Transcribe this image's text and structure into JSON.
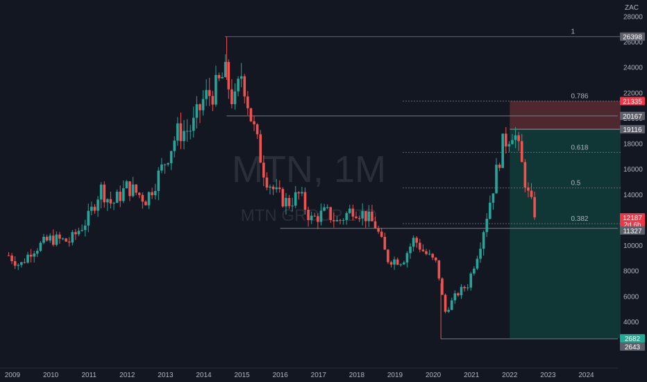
{
  "symbol_watermark": "MTN, 1M",
  "symbol_subtitle_watermark": "MTN GROUP LTD",
  "currency": "ZAC",
  "colors": {
    "background": "#131722",
    "up": "#26a69a",
    "down": "#ef5350",
    "grid_text": "#b2b5be",
    "fib_line": "#787b86",
    "stop_zone": "#5b2a31",
    "target_zone": "#113a37"
  },
  "chart_data": {
    "type": "candlestick",
    "interval": "1M",
    "y_ticks": [
      4000,
      6000,
      8000,
      10000,
      12000,
      14000,
      16000,
      18000,
      20000,
      22000,
      24000,
      26000,
      28000
    ],
    "x_ticks": [
      "2009",
      "2010",
      "2011",
      "2012",
      "2013",
      "2014",
      "2015",
      "2016",
      "2017",
      "2018",
      "2019",
      "2020",
      "2021",
      "2022",
      "2023",
      "2024"
    ],
    "ylim": [
      1000,
      29000
    ],
    "xlim": [
      2008.9,
      2024.9
    ],
    "fib_levels": [
      {
        "ratio": "1",
        "price": 26398
      },
      {
        "ratio": "0.786",
        "price": 21335
      },
      {
        "ratio": "0.618",
        "price": 17300
      },
      {
        "ratio": "0.5",
        "price": 14500
      },
      {
        "ratio": "0.382",
        "price": 11700
      }
    ],
    "horizontal_levels": [
      20167,
      11327
    ],
    "position": {
      "entry": 19116,
      "stop": 21335,
      "target": 2682,
      "start": 2022.0,
      "end": 2024.9
    },
    "price_labels": [
      {
        "text": "26398",
        "price": 26398,
        "style": "gray"
      },
      {
        "text": "21335",
        "price": 21335,
        "style": "red"
      },
      {
        "text": "20167",
        "price": 20167,
        "style": "gray"
      },
      {
        "text": "19116",
        "price": 19116,
        "style": "gray"
      },
      {
        "text": "12187",
        "price": 12187,
        "style": "red",
        "sub": "2d 6h"
      },
      {
        "text": "11327",
        "price": 11327,
        "style": "gray"
      },
      {
        "text": "2682",
        "price": 2682,
        "style": "teal"
      },
      {
        "text": "2643",
        "price": 2643,
        "style": "gray"
      }
    ],
    "anchors": [
      [
        2008.9,
        9200
      ],
      [
        2009.2,
        8400
      ],
      [
        2009.5,
        9600
      ],
      [
        2010.0,
        10500
      ],
      [
        2010.5,
        10300
      ],
      [
        2011.0,
        12200
      ],
      [
        2011.3,
        14500
      ],
      [
        2011.6,
        13200
      ],
      [
        2012.0,
        14600
      ],
      [
        2012.5,
        13600
      ],
      [
        2012.9,
        16000
      ],
      [
        2013.3,
        18800
      ],
      [
        2013.7,
        19200
      ],
      [
        2014.0,
        21500
      ],
      [
        2014.3,
        22200
      ],
      [
        2014.55,
        23500
      ],
      [
        2014.8,
        21000
      ],
      [
        2015.0,
        23700
      ],
      [
        2015.2,
        20500
      ],
      [
        2015.6,
        15500
      ],
      [
        2015.9,
        14000
      ],
      [
        2016.2,
        13300
      ],
      [
        2016.5,
        14000
      ],
      [
        2016.8,
        12000
      ],
      [
        2017.2,
        12600
      ],
      [
        2017.5,
        11800
      ],
      [
        2017.9,
        12900
      ],
      [
        2018.2,
        12400
      ],
      [
        2018.5,
        11500
      ],
      [
        2018.8,
        8900
      ],
      [
        2019.2,
        8800
      ],
      [
        2019.5,
        10500
      ],
      [
        2019.75,
        9500
      ],
      [
        2020.1,
        8500
      ],
      [
        2020.3,
        4700
      ],
      [
        2020.6,
        6100
      ],
      [
        2020.9,
        6900
      ],
      [
        2021.2,
        9800
      ],
      [
        2021.5,
        13700
      ],
      [
        2021.8,
        17800
      ],
      [
        2022.1,
        19200
      ],
      [
        2022.3,
        16500
      ],
      [
        2022.5,
        13700
      ],
      [
        2022.6,
        12900
      ],
      [
        2022.72,
        12187
      ]
    ]
  }
}
